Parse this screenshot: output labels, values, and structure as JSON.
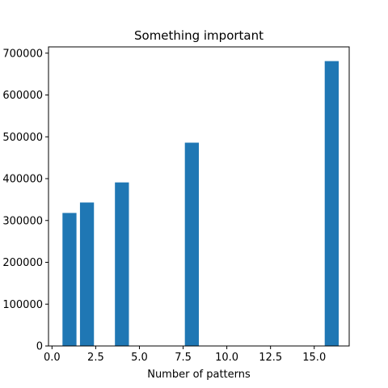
{
  "chart_data": {
    "type": "bar",
    "title": "Something important",
    "xlabel": "Number of patterns",
    "ylabel": "",
    "x": [
      1,
      2,
      4,
      8,
      16
    ],
    "values": [
      318000,
      343000,
      391000,
      486000,
      681000
    ],
    "xlim": [
      -0.2,
      17
    ],
    "ylim": [
      0,
      715000
    ],
    "xticks": [
      0,
      2.5,
      5,
      7.5,
      10,
      12.5,
      15
    ],
    "xtick_labels": [
      "0.0",
      "2.5",
      "5.0",
      "7.5",
      "10.0",
      "12.5",
      "15.0"
    ],
    "yticks": [
      0,
      100000,
      200000,
      300000,
      400000,
      500000,
      600000,
      700000
    ],
    "ytick_labels": [
      "0",
      "100000",
      "200000",
      "300000",
      "400000",
      "500000",
      "600000",
      "700000"
    ],
    "bar_width": 0.8,
    "bar_color": "#1f77b4",
    "grid": false,
    "legend": "none"
  }
}
